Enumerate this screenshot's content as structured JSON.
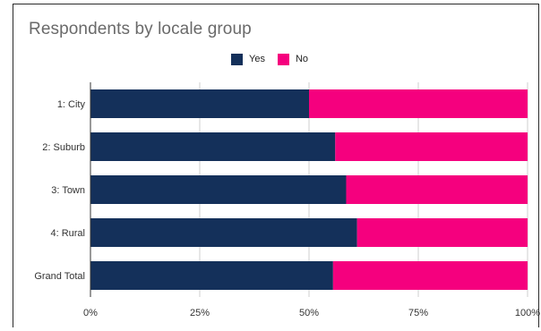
{
  "chart_data": {
    "type": "bar",
    "orientation": "horizontal",
    "stacked": "percent",
    "title": "Respondents by locale group",
    "categories": [
      "1: City",
      "2: Suburb",
      "3: Town",
      "4: Rural",
      "Grand Total"
    ],
    "series": [
      {
        "name": "Yes",
        "color": "#14305a",
        "values": [
          50,
          56,
          58.5,
          61,
          55.5
        ]
      },
      {
        "name": "No",
        "color": "#f5007e",
        "values": [
          50,
          44,
          41.5,
          39,
          44.5
        ]
      }
    ],
    "xlim": [
      0,
      100
    ],
    "x_ticks": [
      "0%",
      "25%",
      "50%",
      "75%",
      "100%"
    ],
    "xlabel": "",
    "ylabel": "",
    "grid": true,
    "legend_position": "top"
  }
}
